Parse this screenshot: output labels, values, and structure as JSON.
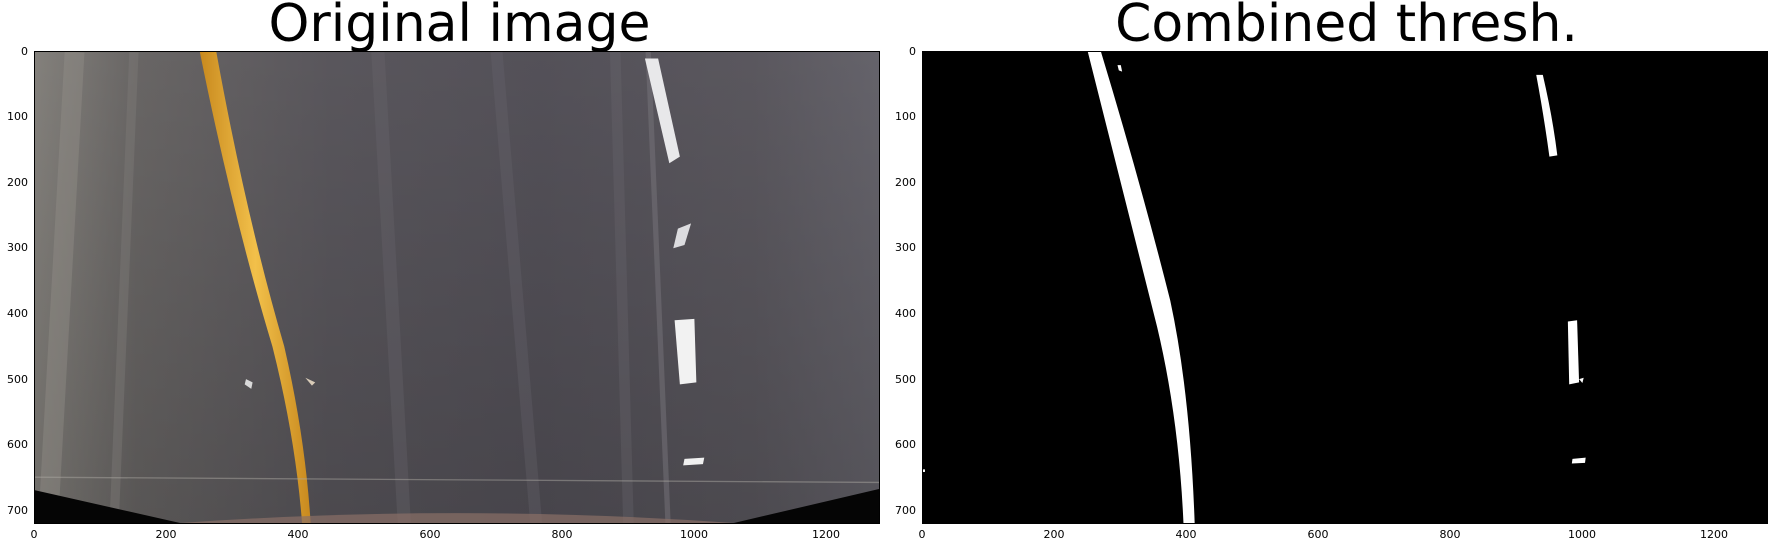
{
  "panels": [
    {
      "title": "Original image",
      "image_name": "road-original-image",
      "y_ticks": [
        "0",
        "100",
        "200",
        "300",
        "400",
        "500",
        "600",
        "700"
      ],
      "x_ticks": [
        "0",
        "200",
        "400",
        "600",
        "800",
        "1000",
        "1200"
      ]
    },
    {
      "title": "Combined thresh.",
      "image_name": "combined-threshold-image",
      "y_ticks": [
        "0",
        "100",
        "200",
        "300",
        "400",
        "500",
        "600",
        "700"
      ],
      "x_ticks": [
        "0",
        "200",
        "400",
        "600",
        "800",
        "1000",
        "1200"
      ]
    }
  ],
  "axis": {
    "x_max": 1280,
    "y_max": 720
  },
  "colors": {
    "road": "#5f5c62",
    "lane_yellow": "#e8b23a",
    "lane_white": "#f2f2f2",
    "mask_bg": "#000000",
    "mask_fg": "#ffffff"
  }
}
